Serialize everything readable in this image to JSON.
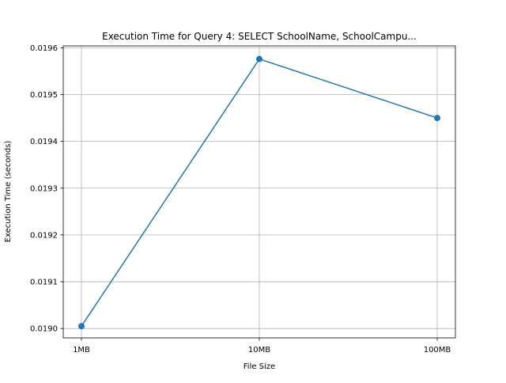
{
  "chart_data": {
    "type": "line",
    "title": "Execution Time for Query 4: SELECT SchoolName, SchoolCampu...",
    "xlabel": "File Size",
    "ylabel": "Execution Time (seconds)",
    "categories": [
      "1MB",
      "10MB",
      "100MB"
    ],
    "series": [
      {
        "values": [
          0.019005,
          0.019576,
          0.01945
        ],
        "color": "#1f77b4",
        "marker": "circle"
      }
    ],
    "ylim": [
      0.01898,
      0.019604
    ],
    "yticks": [
      0.019,
      0.0191,
      0.0192,
      0.0193,
      0.0194,
      0.0195,
      0.0196
    ],
    "ytick_labels": [
      "0.0190",
      "0.0191",
      "0.0192",
      "0.0193",
      "0.0194",
      "0.0195",
      "0.0196"
    ],
    "grid": true,
    "legend": "none"
  }
}
